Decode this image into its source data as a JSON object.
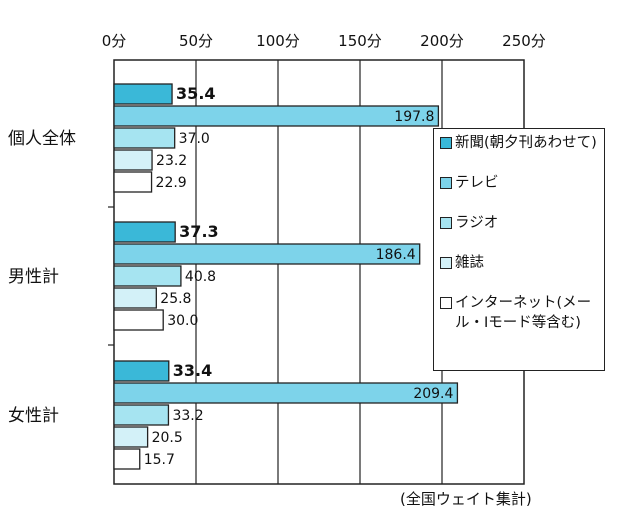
{
  "chart_data": {
    "type": "bar",
    "orientation": "horizontal",
    "categories": [
      "個人全体",
      "男性計",
      "女性計"
    ],
    "series": [
      {
        "name": "新聞(朝夕刊あわせて)",
        "values": [
          35.4,
          37.3,
          33.4
        ],
        "color": "#3ab8d8",
        "bold_label": true
      },
      {
        "name": "テレビ",
        "values": [
          197.8,
          186.4,
          209.4
        ],
        "color": "#7dd3ea",
        "bold_label": false
      },
      {
        "name": "ラジオ",
        "values": [
          37.0,
          40.8,
          33.2
        ],
        "color": "#a6e4f1",
        "bold_label": false
      },
      {
        "name": "雑誌",
        "values": [
          23.2,
          25.8,
          20.5
        ],
        "color": "#d3f1f8",
        "bold_label": false
      },
      {
        "name": "インターネット(メール・Iモード等含む)",
        "values": [
          22.9,
          30.0,
          15.7
        ],
        "color": "#ffffff",
        "bold_label": false
      }
    ],
    "value_labels": [
      [
        "35.4",
        "197.8",
        "37.0",
        "23.2",
        "22.9"
      ],
      [
        "37.3",
        "186.4",
        "40.8",
        "25.8",
        "30.0"
      ],
      [
        "33.4",
        "209.4",
        "33.2",
        "20.5",
        "15.7"
      ]
    ],
    "x_ticks": [
      "0分",
      "50分",
      "100分",
      "150分",
      "200分",
      "250分"
    ],
    "xlim": [
      0,
      250
    ],
    "grid": true,
    "legend_position": "right"
  },
  "legend": {
    "items": [
      {
        "label": "新聞(朝夕刊あわせて)"
      },
      {
        "label": "テレビ"
      },
      {
        "label": "ラジオ"
      },
      {
        "label": "雑誌"
      },
      {
        "label": "インターネット(メール・Iモード等含む)"
      }
    ]
  },
  "note": "(全国ウェイト集計)"
}
